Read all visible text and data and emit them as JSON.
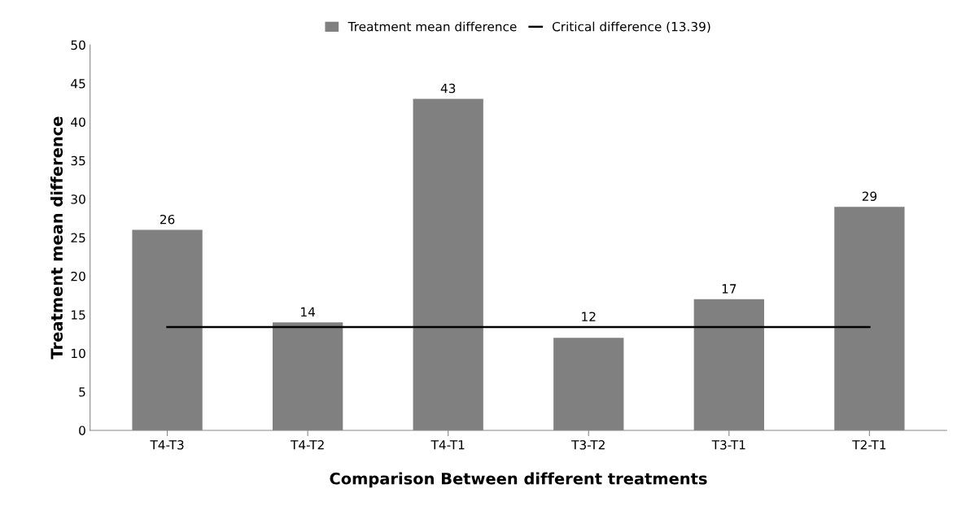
{
  "chart_data": {
    "type": "bar",
    "xlabel": "Comparison Between different treatments",
    "ylabel": "Treatment mean difference",
    "categories": [
      "T4-T3",
      "T4-T2",
      "T4-T1",
      "T3-T2",
      "T3-T1",
      "T2-T1"
    ],
    "series": [
      {
        "name": "Treatment mean difference",
        "color": "#808080",
        "values": [
          26,
          14,
          43,
          12,
          17,
          29
        ],
        "value_labels": [
          "26",
          "14",
          "43",
          "12",
          "17",
          "29"
        ]
      },
      {
        "name": "Critical difference (13.39)",
        "type": "line",
        "color": "#000000",
        "values": [
          13.39,
          13.39,
          13.39,
          13.39,
          13.39,
          13.39
        ]
      }
    ],
    "ylim": [
      0,
      50
    ],
    "yticks": [
      0,
      5,
      10,
      15,
      20,
      25,
      30,
      35,
      40,
      45,
      50
    ],
    "legend": "top",
    "grid": false,
    "marker": "none",
    "line_style": "solid"
  }
}
